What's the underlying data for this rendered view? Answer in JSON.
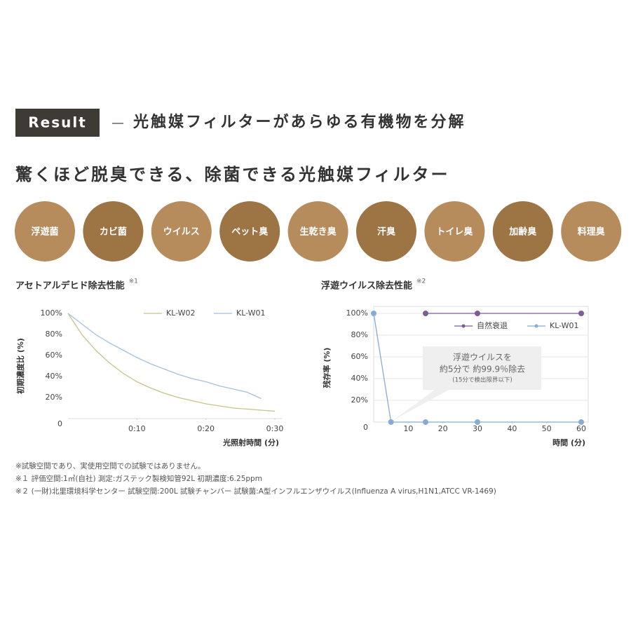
{
  "header": {
    "badge": "Result",
    "title": "光触媒フィルターがあらゆる有機物を分解"
  },
  "subtitle": "驚くほど脱臭できる、除菌できる光触媒フィルター",
  "circles": [
    "浮遊菌",
    "カビ菌",
    "ウイルス",
    "ペット臭",
    "生乾き臭",
    "汗臭",
    "トイレ臭",
    "加齢臭",
    "料理臭"
  ],
  "chart_data": [
    {
      "type": "line",
      "title": "アセトアルデヒド除去性能",
      "title_note": "※1",
      "y_label": "初期濃度比 (%)",
      "x_label": "光照射時間 (分)",
      "x": [
        0,
        2,
        4,
        6,
        8,
        10,
        12,
        14,
        16,
        18,
        20,
        22,
        24,
        26,
        28,
        30
      ],
      "series": [
        {
          "name": "KL-W02",
          "color": "#c8c28c",
          "values": [
            100,
            80,
            65,
            53,
            43,
            35,
            29,
            24,
            20,
            17,
            14,
            12,
            10,
            9,
            8,
            7
          ]
        },
        {
          "name": "KL-W01",
          "color": "#a5c0dc",
          "values": [
            100,
            90,
            80,
            72,
            65,
            58,
            52,
            47,
            42,
            38,
            35,
            31,
            28,
            25,
            19,
            null
          ]
        }
      ],
      "xlim": [
        0,
        30
      ],
      "xticks": [
        {
          "value": 10,
          "label": "0:10"
        },
        {
          "value": 20,
          "label": "0:20"
        },
        {
          "value": 30,
          "label": "0:30"
        }
      ],
      "ylim": [
        0,
        100
      ],
      "yticks": [
        0,
        {
          "value": 20,
          "label": "20%"
        },
        {
          "value": 40,
          "label": "40%"
        },
        {
          "value": 60,
          "label": "60%"
        },
        {
          "value": 80,
          "label": "80%"
        },
        {
          "value": 100,
          "label": "100%"
        }
      ],
      "grid": false
    },
    {
      "type": "line",
      "title": "浮遊ウイルス除去性能",
      "title_note": "※2",
      "y_label": "残存率 (%)",
      "x_label": "時間 (分)",
      "series": [
        {
          "name": "自然衰退",
          "color": "#7d5c97",
          "x": [
            15,
            30,
            60
          ],
          "values": [
            100,
            100,
            100
          ]
        },
        {
          "name": "KL-W01",
          "color": "#86acd6",
          "x": [
            0,
            5,
            15,
            30,
            60
          ],
          "values": [
            100,
            0,
            0,
            0,
            0
          ]
        }
      ],
      "annotation": [
        "浮遊ウイルスを",
        "約5分で 約99.9％除去",
        "(15分で検出限界以下)"
      ],
      "xlim": [
        0,
        60
      ],
      "xticks": [
        10,
        20,
        30,
        40,
        50,
        60
      ],
      "ylim": [
        0,
        100
      ],
      "yticks": [
        0,
        {
          "value": 20,
          "label": "20%"
        },
        {
          "value": 40,
          "label": "40%"
        },
        {
          "value": 60,
          "label": "60%"
        },
        {
          "value": 80,
          "label": "80%"
        },
        {
          "value": 100,
          "label": "100%"
        }
      ],
      "grid": true
    }
  ],
  "footnotes": [
    "※試験空間であり、実使用空間での試験ではありません。",
    "※１ 評価空間:1㎥(自社) 測定:ガステック製検知管92L 初期濃度:6.25ppm",
    "※２ (一財)北里環境科学センター 試験空間:200L 試験チャンバー 試験菌:A型インフルエンザウイルス(Influenza A virus,H1N1,ATCC VR-1469)"
  ]
}
